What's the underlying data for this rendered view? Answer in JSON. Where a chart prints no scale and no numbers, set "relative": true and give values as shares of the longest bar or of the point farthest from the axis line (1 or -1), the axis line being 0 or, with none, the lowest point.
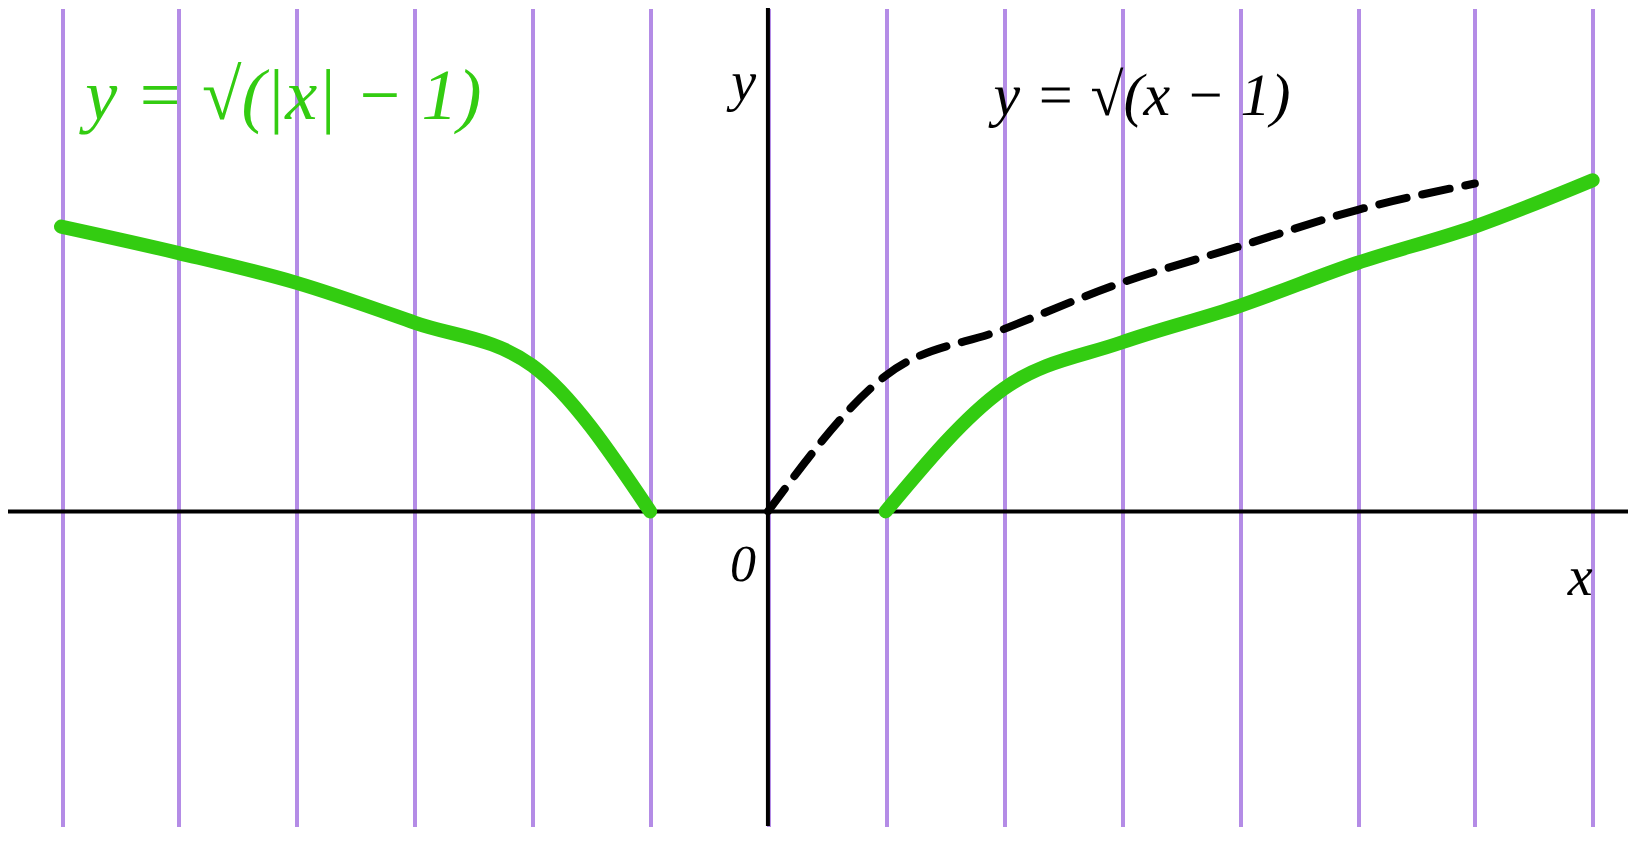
{
  "chart_data": {
    "type": "line",
    "relative": true,
    "xlabel": "x",
    "ylabel": "y",
    "annotations": [
      "0"
    ],
    "categories": [
      null,
      null,
      null,
      null,
      null,
      null,
      null,
      null,
      null,
      null,
      null,
      null,
      null,
      null
    ],
    "grid": "x",
    "legend": false,
    "marker": "none",
    "series": [
      {
        "name": "y = √(|x| − 1)",
        "color": "#33cc11",
        "line_style": "solid",
        "values": [
          0.86,
          0.78,
          0.69,
          0.57,
          0.44,
          0,
          null,
          0,
          0.37,
          0.51,
          0.62,
          0.75,
          0.86,
          1
        ]
      },
      {
        "name": "y = √(x − 1)",
        "color": "#000000",
        "line_style": "dashed",
        "values": [
          null,
          null,
          null,
          null,
          null,
          null,
          0,
          0.41,
          0.55,
          0.69,
          0.8,
          0.91,
          0.99,
          null
        ]
      }
    ]
  }
}
